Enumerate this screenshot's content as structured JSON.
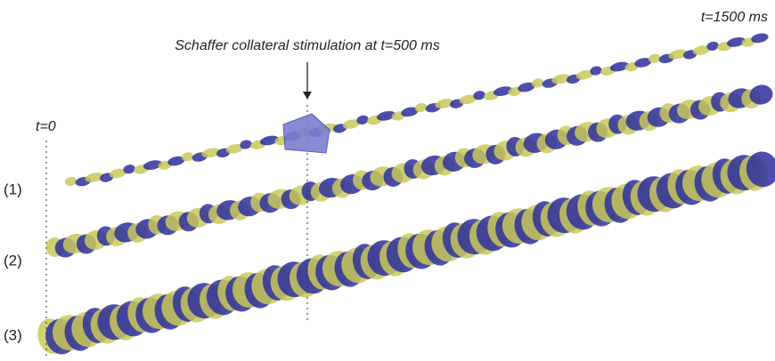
{
  "annotations": {
    "end_time": "t=1500 ms",
    "stimulation": "Schaffer collateral stimulation at t=500 ms",
    "start_time": "t=0"
  },
  "rows": [
    "(1)",
    "(2)",
    "(3)"
  ]
}
